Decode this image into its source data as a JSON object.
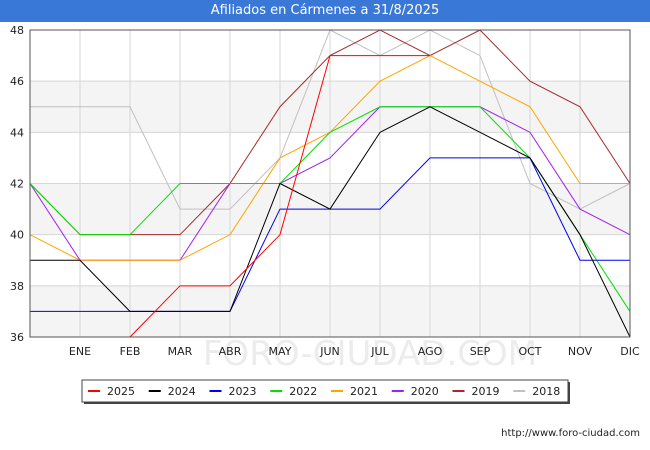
{
  "header": {
    "title": "Afiliados en Cármenes a 31/8/2025"
  },
  "footer": {
    "url": "http://www.foro-ciudad.com"
  },
  "watermark": "FORO-CIUDAD.COM",
  "chart_data": {
    "type": "line",
    "title": "Afiliados en Cármenes a 31/8/2025",
    "xlabel": "",
    "ylabel": "",
    "categories": [
      "",
      "ENE",
      "FEB",
      "MAR",
      "ABR",
      "MAY",
      "JUN",
      "JUL",
      "AGO",
      "SEP",
      "OCT",
      "NOV",
      "DIC"
    ],
    "ylim": [
      36,
      48
    ],
    "yticks": [
      36,
      38,
      40,
      42,
      44,
      46,
      48
    ],
    "grid": true,
    "legend_position": "bottom",
    "series": [
      {
        "name": "2018",
        "color": "#c0c0c0",
        "values": [
          45,
          45,
          45,
          41,
          41,
          43,
          48,
          47,
          48,
          47,
          42,
          41,
          42
        ]
      },
      {
        "name": "2019",
        "color": "#a52a2a",
        "values": [
          42,
          40,
          40,
          40,
          42,
          45,
          47,
          48,
          47,
          48,
          46,
          45,
          42
        ]
      },
      {
        "name": "2020",
        "color": "#a020f0",
        "values": [
          42,
          39,
          39,
          39,
          42,
          42,
          43,
          45,
          45,
          45,
          44,
          41,
          40
        ]
      },
      {
        "name": "2021",
        "color": "#ffa500",
        "values": [
          40,
          39,
          39,
          39,
          40,
          43,
          44,
          46,
          47,
          46,
          45,
          42,
          42
        ]
      },
      {
        "name": "2022",
        "color": "#00e000",
        "values": [
          42,
          40,
          40,
          42,
          42,
          42,
          44,
          45,
          45,
          45,
          43,
          40,
          37
        ]
      },
      {
        "name": "2023",
        "color": "#0000ee",
        "values": [
          37,
          37,
          37,
          37,
          37,
          41,
          41,
          41,
          43,
          43,
          43,
          39,
          39
        ]
      },
      {
        "name": "2024",
        "color": "#000000",
        "values": [
          39,
          39,
          37,
          37,
          37,
          42,
          41,
          44,
          45,
          44,
          43,
          40,
          36
        ]
      },
      {
        "name": "2025",
        "color": "#ff0000",
        "values": [
          null,
          null,
          36,
          38,
          38,
          40,
          47,
          47,
          47,
          null,
          null,
          null,
          null
        ]
      }
    ],
    "legend_order": [
      "2025",
      "2024",
      "2023",
      "2022",
      "2021",
      "2020",
      "2019",
      "2018"
    ]
  }
}
